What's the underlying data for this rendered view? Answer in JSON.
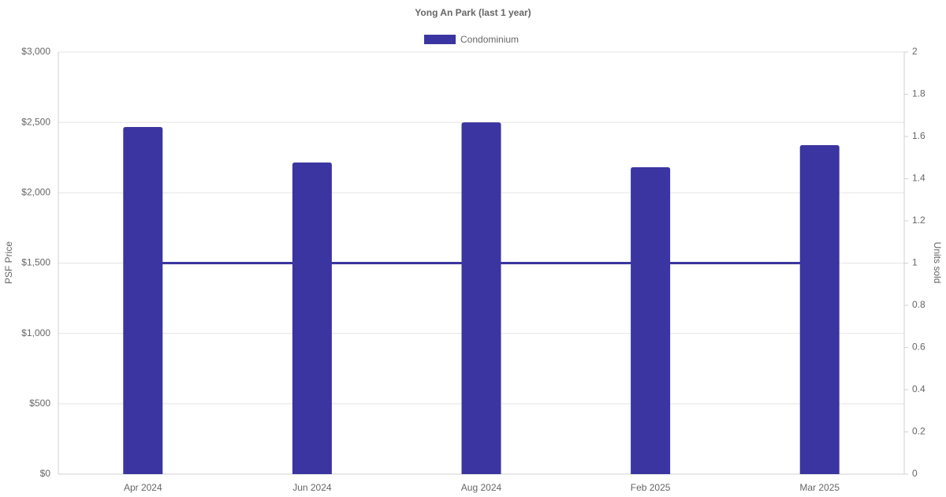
{
  "chart_data": {
    "type": "bar",
    "title": "Yong An Park (last 1 year)",
    "categories": [
      "Apr 2024",
      "Jun 2024",
      "Aug 2024",
      "Feb 2025",
      "Mar 2025"
    ],
    "series": [
      {
        "name": "Condominium",
        "type": "bar",
        "color": "#3a35a0",
        "values": [
          2467,
          2215,
          2500,
          2181,
          2338
        ]
      },
      {
        "type": "line",
        "axis": "y2",
        "color": "#3a35a0",
        "values": [
          1,
          1,
          1,
          1,
          1
        ]
      }
    ],
    "y_label": "PSF Price",
    "y2_label": "Units sold",
    "ylim": [
      0,
      3000
    ],
    "yticks": [
      {
        "value": 0,
        "label": "$0"
      },
      {
        "value": 500,
        "label": "$500"
      },
      {
        "value": 1000,
        "label": "$1,000"
      },
      {
        "value": 1500,
        "label": "$1,500"
      },
      {
        "value": 2000,
        "label": "$2,000"
      },
      {
        "value": 2500,
        "label": "$2,500"
      },
      {
        "value": 3000,
        "label": "$3,000"
      }
    ],
    "y2lim": [
      0,
      2
    ],
    "y2ticks": [
      0,
      0.2,
      0.4,
      0.6,
      0.8,
      1,
      1.2,
      1.4,
      1.6,
      1.8,
      2
    ],
    "grid": true,
    "legend": "top"
  }
}
